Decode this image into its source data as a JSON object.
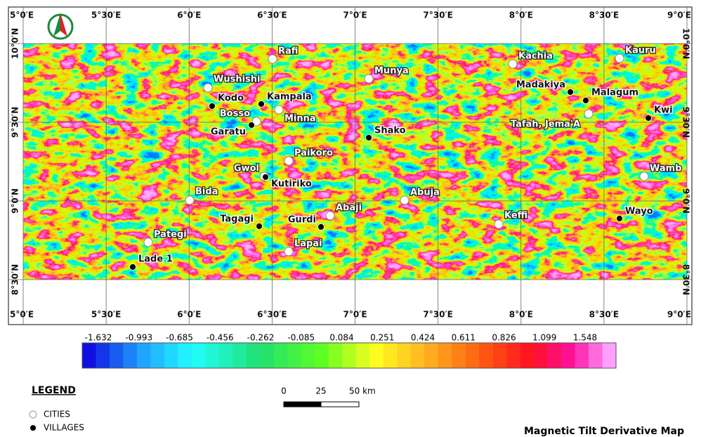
{
  "map": {
    "title": "Magnetic Tilt Derivative Map",
    "longitude_labels": [
      "5°0′E",
      "5°30′E",
      "6°0′E",
      "6°30′E",
      "7°0′E",
      "7°30′E",
      "8°0′E",
      "8°30′E",
      "9°0′E"
    ],
    "latitude_labels": [
      "10°0′N",
      "9°30′N",
      "9°0′N",
      "8°30′N"
    ],
    "cities": [
      "Rafi",
      "Kachia",
      "Kauru",
      "Wushishi",
      "Munya",
      "Minna",
      "Bosso",
      "Tafah, Jema'A",
      "Paikoro",
      "Gwol",
      "Bida",
      "Abuja",
      "Abaji",
      "Keffi",
      "Pategi",
      "Lapai",
      "Wamb"
    ],
    "villages": [
      "Kodo",
      "Kampala",
      "Garatu",
      "Shako",
      "Kutiriko",
      "Madakiya",
      "Malagum",
      "Kwi",
      "Tagagi",
      "Gurdi",
      "Wayo",
      "Lade 1"
    ],
    "colorbar": {
      "values": [
        -1.632,
        -0.993,
        -0.685,
        -0.456,
        -0.262,
        -0.085,
        0.084,
        0.251,
        0.424,
        0.611,
        0.826,
        1.099,
        1.548
      ]
    },
    "legend": {
      "title": "LEGEND",
      "items": [
        "CITIES",
        "VILLAGES"
      ]
    },
    "scale_bar": {
      "labels": [
        "0",
        "25",
        "50 km"
      ]
    }
  }
}
